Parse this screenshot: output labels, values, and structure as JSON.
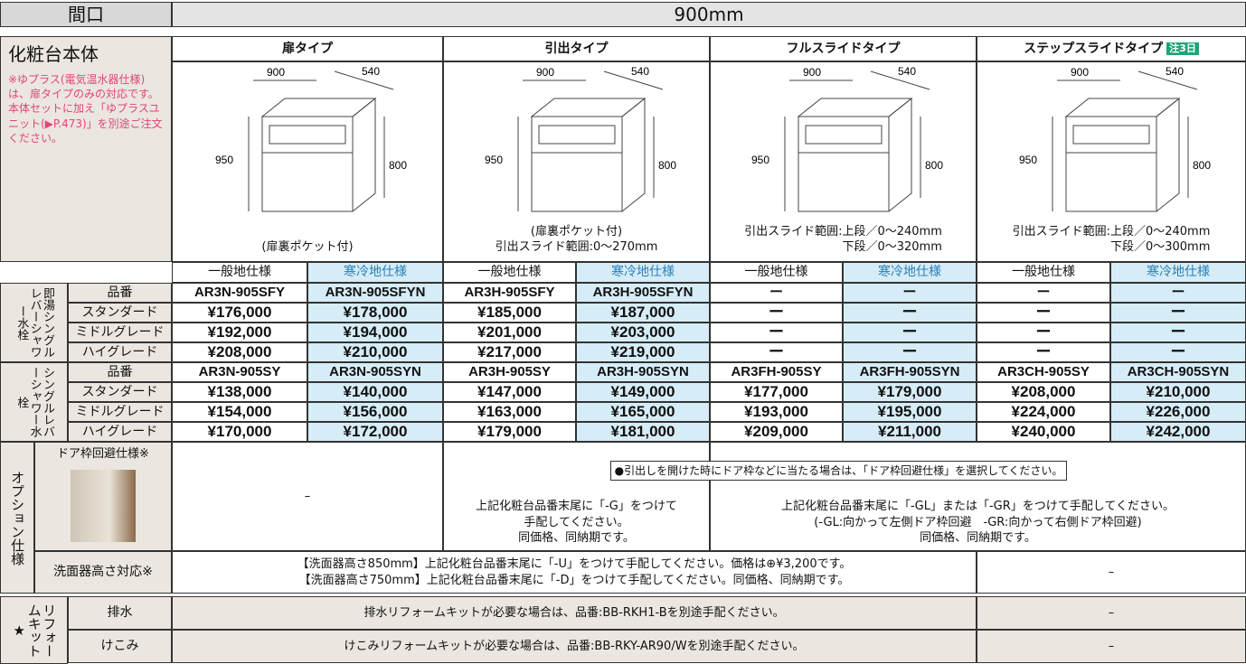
{
  "header": {
    "label": "間口",
    "value": "900mm"
  },
  "body_title": "化粧台本体",
  "body_note": "※ゆプラス(電気温水器仕様)は、扉タイプのみの対応です。本体セットに加え「ゆプラスユニット(▶P.473)」を別途ご注文ください。",
  "drawing_dims": {
    "width": 900,
    "depth": 540,
    "height": 950,
    "counter_height": 800
  },
  "types": [
    {
      "name": "扉タイプ",
      "notes": [
        "(扉裏ポケット付)"
      ]
    },
    {
      "name": "引出タイプ",
      "notes": [
        "(扉裏ポケット付)",
        "引出スライド範囲:0〜270mm"
      ]
    },
    {
      "name": "フルスライドタイプ",
      "notes": [
        "引出スライド範囲:上段／0〜240mm",
        "下段／0〜320mm"
      ]
    },
    {
      "name": "ステップスライドタイプ",
      "badge": "注3日",
      "notes": [
        "引出スライド範囲:上段／0〜240mm",
        "下段／0〜300mm"
      ]
    }
  ],
  "spec_labels": [
    "一般地仕様",
    "寒冷地仕様"
  ],
  "groups": [
    {
      "label": "即湯シングルレバーシャワー水栓",
      "rows": [
        {
          "label": "品番",
          "cells": [
            "AR3N-905SFY",
            "AR3N-905SFYN",
            "AR3H-905SFY",
            "AR3H-905SFYN",
            "ー",
            "ー",
            "ー",
            "ー"
          ]
        },
        {
          "label": "スタンダード",
          "cells": [
            "¥176,000",
            "¥178,000",
            "¥185,000",
            "¥187,000",
            "ー",
            "ー",
            "ー",
            "ー"
          ]
        },
        {
          "label": "ミドルグレード",
          "cells": [
            "¥192,000",
            "¥194,000",
            "¥201,000",
            "¥203,000",
            "ー",
            "ー",
            "ー",
            "ー"
          ]
        },
        {
          "label": "ハイグレード",
          "cells": [
            "¥208,000",
            "¥210,000",
            "¥217,000",
            "¥219,000",
            "ー",
            "ー",
            "ー",
            "ー"
          ]
        }
      ]
    },
    {
      "label": "シングルレバーシャワー水栓",
      "rows": [
        {
          "label": "品番",
          "cells": [
            "AR3N-905SY",
            "AR3N-905SYN",
            "AR3H-905SY",
            "AR3H-905SYN",
            "AR3FH-905SY",
            "AR3FH-905SYN",
            "AR3CH-905SY",
            "AR3CH-905SYN"
          ]
        },
        {
          "label": "スタンダード",
          "cells": [
            "¥138,000",
            "¥140,000",
            "¥147,000",
            "¥149,000",
            "¥177,000",
            "¥179,000",
            "¥208,000",
            "¥210,000"
          ]
        },
        {
          "label": "ミドルグレード",
          "cells": [
            "¥154,000",
            "¥156,000",
            "¥163,000",
            "¥165,000",
            "¥193,000",
            "¥195,000",
            "¥224,000",
            "¥226,000"
          ]
        },
        {
          "label": "ハイグレード",
          "cells": [
            "¥170,000",
            "¥172,000",
            "¥179,000",
            "¥181,000",
            "¥209,000",
            "¥211,000",
            "¥240,000",
            "¥242,000"
          ]
        }
      ]
    }
  ],
  "options": {
    "label": "オプション仕様",
    "door": {
      "label": "ドア枠回避仕様※",
      "door_type": "–",
      "notice": "●引出しを開けた時にドア枠などに当たる場合は、「ドア枠回避仕様」を選択してください。",
      "drawer_type": [
        "上記化粧台品番末尾に「-G」をつけて",
        "手配してください。",
        "同価格、同納期です。"
      ],
      "slide_types": [
        "上記化粧台品番末尾に「-GL」または「-GR」をつけて手配してください。",
        "(-GL:向かって左側ドア枠回避　-GR:向かって右側ドア枠回避)",
        "同価格、同納期です。"
      ]
    },
    "height": {
      "label": "洗面器高さ対応※",
      "lines": [
        "【洗面器高さ850mm】上記化粧台品番末尾に「-U」をつけて手配してください。価格は⊕¥3,200です。",
        "【洗面器高さ750mm】上記化粧台品番末尾に「-D」をつけて手配してください。同価格、同納期です。"
      ],
      "step_slide": "–"
    }
  },
  "kit": {
    "label": "リフォームキット★",
    "rows": [
      {
        "label": "排水",
        "text": "排水リフォームキットが必要な場合は、品番:BB-RKH1-Bを別途手配ください。",
        "step_slide": "–"
      },
      {
        "label": "けこみ",
        "text": "けこみリフォームキットが必要な場合は、品番:BB-RKY-AR90/Wを別途手配ください。",
        "step_slide": "–"
      }
    ]
  }
}
